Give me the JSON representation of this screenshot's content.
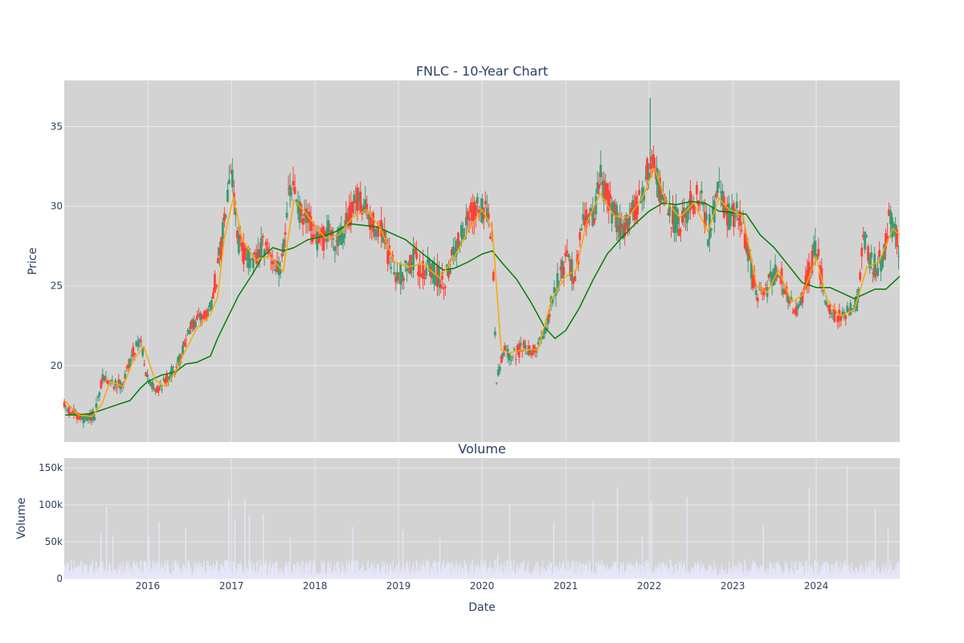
{
  "chart_data": [
    {
      "type": "candlestick",
      "title": "FNLC - 10-Year Chart",
      "xlabel": "",
      "ylabel": "Price",
      "xlim": [
        "2015-01-01",
        "2024-12-31"
      ],
      "ylim": [
        15.2,
        37.9
      ],
      "y_ticks": [
        20,
        25,
        30,
        35
      ],
      "grid": true,
      "colors": {
        "up": "#3d9970",
        "down": "#ff4136",
        "ma_short": "#ffa500",
        "ma_long": "#008000",
        "plot_bg": "#d3d3d3",
        "grid": "#e8e8e8"
      },
      "series": [
        {
          "type": "candlestick",
          "data_rule": "daily OHLC bars"
        },
        {
          "type": "line",
          "role": "short moving average",
          "color": "#ffa500"
        },
        {
          "type": "line",
          "role": "long moving average",
          "color": "#008000"
        }
      ],
      "price_path": [
        [
          "2015-01-05",
          17.4
        ],
        [
          "2015-02-15",
          16.9
        ],
        [
          "2015-04-01",
          16.6
        ],
        [
          "2015-05-15",
          16.9
        ],
        [
          "2015-06-20",
          19.3
        ],
        [
          "2015-08-01",
          18.8
        ],
        [
          "2015-09-15",
          18.9
        ],
        [
          "2015-11-01",
          21.0
        ],
        [
          "2015-12-01",
          21.7
        ],
        [
          "2016-01-01",
          19.0
        ],
        [
          "2016-02-15",
          18.5
        ],
        [
          "2016-04-01",
          19.3
        ],
        [
          "2016-05-15",
          20.2
        ],
        [
          "2016-07-01",
          22.3
        ],
        [
          "2016-08-15",
          23.0
        ],
        [
          "2016-10-01",
          23.6
        ],
        [
          "2016-11-15",
          27.0
        ],
        [
          "2016-12-10",
          30.5
        ],
        [
          "2016-12-28",
          33.0
        ],
        [
          "2017-02-01",
          27.8
        ],
        [
          "2017-03-01",
          27.0
        ],
        [
          "2017-04-15",
          26.3
        ],
        [
          "2017-05-15",
          27.4
        ],
        [
          "2017-07-01",
          26.8
        ],
        [
          "2017-08-01",
          25.7
        ],
        [
          "2017-09-01",
          30.0
        ],
        [
          "2017-10-01",
          31.2
        ],
        [
          "2017-11-01",
          29.3
        ],
        [
          "2017-12-01",
          29.0
        ],
        [
          "2018-01-15",
          27.6
        ],
        [
          "2018-03-01",
          28.4
        ],
        [
          "2018-04-15",
          27.8
        ],
        [
          "2018-06-01",
          29.4
        ],
        [
          "2018-07-15",
          30.5
        ],
        [
          "2018-09-01",
          29.0
        ],
        [
          "2018-10-15",
          28.5
        ],
        [
          "2018-12-01",
          26.3
        ],
        [
          "2019-01-15",
          25.6
        ],
        [
          "2019-03-01",
          26.7
        ],
        [
          "2019-04-15",
          26.2
        ],
        [
          "2019-06-01",
          25.8
        ],
        [
          "2019-07-15",
          25.2
        ],
        [
          "2019-09-01",
          27.3
        ],
        [
          "2019-10-15",
          28.4
        ],
        [
          "2019-12-01",
          30.0
        ],
        [
          "2020-01-15",
          29.6
        ],
        [
          "2020-02-15",
          28.0
        ],
        [
          "2020-03-05",
          18.9
        ],
        [
          "2020-04-01",
          21.0
        ],
        [
          "2020-05-15",
          20.6
        ],
        [
          "2020-07-01",
          21.2
        ],
        [
          "2020-08-15",
          20.9
        ],
        [
          "2020-10-01",
          22.0
        ],
        [
          "2020-11-15",
          25.0
        ],
        [
          "2021-01-01",
          26.6
        ],
        [
          "2021-02-15",
          25.5
        ],
        [
          "2021-03-15",
          29.6
        ],
        [
          "2021-05-01",
          29.0
        ],
        [
          "2021-06-01",
          31.8
        ],
        [
          "2021-07-15",
          30.0
        ],
        [
          "2021-09-01",
          28.6
        ],
        [
          "2021-10-15",
          29.4
        ],
        [
          "2021-12-01",
          30.8
        ],
        [
          "2022-01-15",
          33.4
        ],
        [
          "2022-02-15",
          31.0
        ],
        [
          "2022-04-01",
          29.3
        ],
        [
          "2022-05-15",
          29.0
        ],
        [
          "2022-07-01",
          30.2
        ],
        [
          "2022-08-15",
          30.6
        ],
        [
          "2022-09-15",
          28.3
        ],
        [
          "2022-11-01",
          30.9
        ],
        [
          "2022-12-15",
          29.4
        ],
        [
          "2023-02-01",
          29.6
        ],
        [
          "2023-03-10",
          27.0
        ],
        [
          "2023-04-15",
          24.4
        ],
        [
          "2023-06-01",
          24.8
        ],
        [
          "2023-07-15",
          26.3
        ],
        [
          "2023-09-01",
          24.2
        ],
        [
          "2023-10-15",
          23.3
        ],
        [
          "2023-12-01",
          25.8
        ],
        [
          "2024-01-01",
          27.5
        ],
        [
          "2024-02-15",
          23.6
        ],
        [
          "2024-04-01",
          23.0
        ],
        [
          "2024-05-15",
          23.4
        ],
        [
          "2024-07-01",
          23.9
        ],
        [
          "2024-07-25",
          28.4
        ],
        [
          "2024-09-01",
          26.2
        ],
        [
          "2024-10-15",
          26.6
        ],
        [
          "2024-11-15",
          29.4
        ],
        [
          "2024-12-31",
          27.3
        ]
      ],
      "ma_short": [
        [
          "2015-01-05",
          17.8
        ],
        [
          "2015-03-01",
          16.9
        ],
        [
          "2015-05-01",
          16.8
        ],
        [
          "2015-06-15",
          17.6
        ],
        [
          "2015-07-20",
          19.0
        ],
        [
          "2015-09-15",
          18.7
        ],
        [
          "2015-11-01",
          20.4
        ],
        [
          "2015-12-15",
          21.2
        ],
        [
          "2016-02-01",
          19.1
        ],
        [
          "2016-03-15",
          18.7
        ],
        [
          "2016-05-01",
          19.6
        ],
        [
          "2016-06-15",
          21.0
        ],
        [
          "2016-08-01",
          22.3
        ],
        [
          "2016-10-01",
          23.2
        ],
        [
          "2016-11-01",
          24.3
        ],
        [
          "2016-12-01",
          28.0
        ],
        [
          "2017-01-10",
          30.6
        ],
        [
          "2017-02-15",
          28.0
        ],
        [
          "2017-04-15",
          26.6
        ],
        [
          "2017-06-15",
          26.9
        ],
        [
          "2017-08-15",
          25.9
        ],
        [
          "2017-10-01",
          30.4
        ],
        [
          "2017-11-15",
          29.7
        ],
        [
          "2018-01-01",
          28.8
        ],
        [
          "2018-02-15",
          28.0
        ],
        [
          "2018-04-15",
          28.2
        ],
        [
          "2018-06-15",
          29.3
        ],
        [
          "2018-08-15",
          29.8
        ],
        [
          "2018-10-15",
          28.6
        ],
        [
          "2018-12-15",
          26.5
        ],
        [
          "2019-02-15",
          26.2
        ],
        [
          "2019-04-15",
          26.4
        ],
        [
          "2019-07-01",
          25.5
        ],
        [
          "2019-09-01",
          26.8
        ],
        [
          "2019-11-01",
          28.4
        ],
        [
          "2020-01-01",
          29.8
        ],
        [
          "2020-02-15",
          28.6
        ],
        [
          "2020-03-25",
          21.0
        ],
        [
          "2020-05-01",
          20.8
        ],
        [
          "2020-07-01",
          21.0
        ],
        [
          "2020-09-01",
          21.0
        ],
        [
          "2020-11-01",
          24.2
        ],
        [
          "2021-01-01",
          25.6
        ],
        [
          "2021-02-15",
          26.0
        ],
        [
          "2021-04-01",
          28.9
        ],
        [
          "2021-06-01",
          30.8
        ],
        [
          "2021-08-01",
          29.4
        ],
        [
          "2021-10-01",
          29.3
        ],
        [
          "2021-12-01",
          30.5
        ],
        [
          "2022-01-25",
          32.4
        ],
        [
          "2022-03-15",
          30.3
        ],
        [
          "2022-05-15",
          29.3
        ],
        [
          "2022-07-15",
          30.2
        ],
        [
          "2022-09-15",
          28.4
        ],
        [
          "2022-11-01",
          30.5
        ],
        [
          "2022-12-15",
          29.8
        ],
        [
          "2023-02-15",
          29.4
        ],
        [
          "2023-04-15",
          25.0
        ],
        [
          "2023-06-01",
          24.6
        ],
        [
          "2023-07-20",
          26.0
        ],
        [
          "2023-09-15",
          24.0
        ],
        [
          "2023-11-01",
          24.4
        ],
        [
          "2024-01-01",
          26.8
        ],
        [
          "2024-02-15",
          24.2
        ],
        [
          "2024-04-15",
          23.1
        ],
        [
          "2024-06-15",
          23.5
        ],
        [
          "2024-08-10",
          26.2
        ],
        [
          "2024-10-01",
          26.5
        ],
        [
          "2024-12-01",
          28.6
        ],
        [
          "2024-12-31",
          28.2
        ]
      ],
      "ma_long": [
        [
          "2015-01-05",
          16.9
        ],
        [
          "2015-03-01",
          16.9
        ],
        [
          "2015-05-01",
          17.0
        ],
        [
          "2015-07-01",
          17.3
        ],
        [
          "2015-09-01",
          17.6
        ],
        [
          "2015-10-15",
          17.8
        ],
        [
          "2015-12-01",
          18.6
        ],
        [
          "2016-01-01",
          19.0
        ],
        [
          "2016-03-01",
          19.4
        ],
        [
          "2016-05-01",
          19.6
        ],
        [
          "2016-06-15",
          20.1
        ],
        [
          "2016-08-01",
          20.2
        ],
        [
          "2016-10-01",
          20.6
        ],
        [
          "2016-11-01",
          21.7
        ],
        [
          "2016-12-15",
          23.0
        ],
        [
          "2017-02-01",
          24.4
        ],
        [
          "2017-04-01",
          25.7
        ],
        [
          "2017-05-15",
          26.8
        ],
        [
          "2017-07-01",
          27.4
        ],
        [
          "2017-08-15",
          27.2
        ],
        [
          "2017-10-01",
          27.4
        ],
        [
          "2017-12-01",
          27.9
        ],
        [
          "2018-02-01",
          28.1
        ],
        [
          "2018-04-01",
          28.4
        ],
        [
          "2018-06-01",
          28.9
        ],
        [
          "2018-08-01",
          28.8
        ],
        [
          "2018-10-01",
          28.7
        ],
        [
          "2018-12-01",
          28.3
        ],
        [
          "2019-02-01",
          27.9
        ],
        [
          "2019-04-01",
          27.2
        ],
        [
          "2019-06-01",
          26.5
        ],
        [
          "2019-07-15",
          26.0
        ],
        [
          "2019-09-01",
          26.1
        ],
        [
          "2019-11-01",
          26.5
        ],
        [
          "2020-01-01",
          27.0
        ],
        [
          "2020-02-15",
          27.2
        ],
        [
          "2020-04-01",
          26.4
        ],
        [
          "2020-06-01",
          25.4
        ],
        [
          "2020-08-01",
          24.0
        ],
        [
          "2020-10-01",
          22.4
        ],
        [
          "2020-11-15",
          21.7
        ],
        [
          "2021-01-01",
          22.2
        ],
        [
          "2021-03-01",
          23.6
        ],
        [
          "2021-05-01",
          25.4
        ],
        [
          "2021-07-01",
          27.0
        ],
        [
          "2021-09-01",
          28.0
        ],
        [
          "2021-11-01",
          28.9
        ],
        [
          "2022-01-01",
          29.7
        ],
        [
          "2022-03-01",
          30.2
        ],
        [
          "2022-05-01",
          30.1
        ],
        [
          "2022-07-01",
          30.3
        ],
        [
          "2022-09-01",
          30.2
        ],
        [
          "2022-11-01",
          29.7
        ],
        [
          "2023-01-01",
          29.6
        ],
        [
          "2023-03-01",
          29.5
        ],
        [
          "2023-05-01",
          28.2
        ],
        [
          "2023-07-01",
          27.4
        ],
        [
          "2023-09-01",
          26.3
        ],
        [
          "2023-11-01",
          25.2
        ],
        [
          "2024-01-01",
          24.9
        ],
        [
          "2024-03-01",
          24.9
        ],
        [
          "2024-05-01",
          24.5
        ],
        [
          "2024-06-15",
          24.2
        ],
        [
          "2024-08-01",
          24.5
        ],
        [
          "2024-09-15",
          24.8
        ],
        [
          "2024-11-01",
          24.8
        ],
        [
          "2024-12-31",
          25.6
        ]
      ]
    },
    {
      "type": "bar",
      "title": "Volume",
      "xlabel": "Date",
      "ylabel": "Volume",
      "xlim": [
        "2015-01-01",
        "2024-12-31"
      ],
      "ylim": [
        0,
        163000
      ],
      "y_ticks": [
        0,
        50000,
        100000,
        150000
      ],
      "y_tick_labels": [
        "0",
        "50k",
        "100k",
        "150k"
      ],
      "x_ticks": [
        "2016-01-01",
        "2017-01-01",
        "2018-01-01",
        "2019-01-01",
        "2020-01-01",
        "2021-01-01",
        "2022-01-01",
        "2023-01-01",
        "2024-01-01"
      ],
      "x_tick_labels": [
        "2016",
        "2017",
        "2018",
        "2019",
        "2020",
        "2021",
        "2022",
        "2023",
        "2024"
      ],
      "grid": true,
      "colors": {
        "bar": "#e6e6fa",
        "plot_bg": "#d3d3d3"
      },
      "baseline_volume": 15000,
      "spikes": [
        [
          "2015-06-10",
          62000
        ],
        [
          "2015-07-05",
          98000
        ],
        [
          "2015-08-01",
          58000
        ],
        [
          "2016-01-05",
          58000
        ],
        [
          "2016-02-20",
          77000
        ],
        [
          "2016-06-15",
          68000
        ],
        [
          "2016-12-20",
          108000
        ],
        [
          "2017-01-15",
          80000
        ],
        [
          "2017-03-01",
          108000
        ],
        [
          "2017-03-20",
          86000
        ],
        [
          "2017-05-20",
          88000
        ],
        [
          "2017-09-15",
          55000
        ],
        [
          "2018-06-15",
          70000
        ],
        [
          "2019-01-20",
          66000
        ],
        [
          "2019-07-01",
          55000
        ],
        [
          "2020-03-10",
          34000
        ],
        [
          "2020-05-01",
          100000
        ],
        [
          "2020-11-10",
          75000
        ],
        [
          "2021-05-01",
          106000
        ],
        [
          "2021-08-15",
          123000
        ],
        [
          "2021-12-01",
          58000
        ],
        [
          "2022-01-10",
          105000
        ],
        [
          "2022-06-15",
          110000
        ],
        [
          "2023-05-15",
          72000
        ],
        [
          "2023-12-01",
          122000
        ],
        [
          "2024-05-15",
          153000
        ],
        [
          "2024-09-15",
          95000
        ],
        [
          "2024-11-10",
          68000
        ]
      ]
    }
  ]
}
